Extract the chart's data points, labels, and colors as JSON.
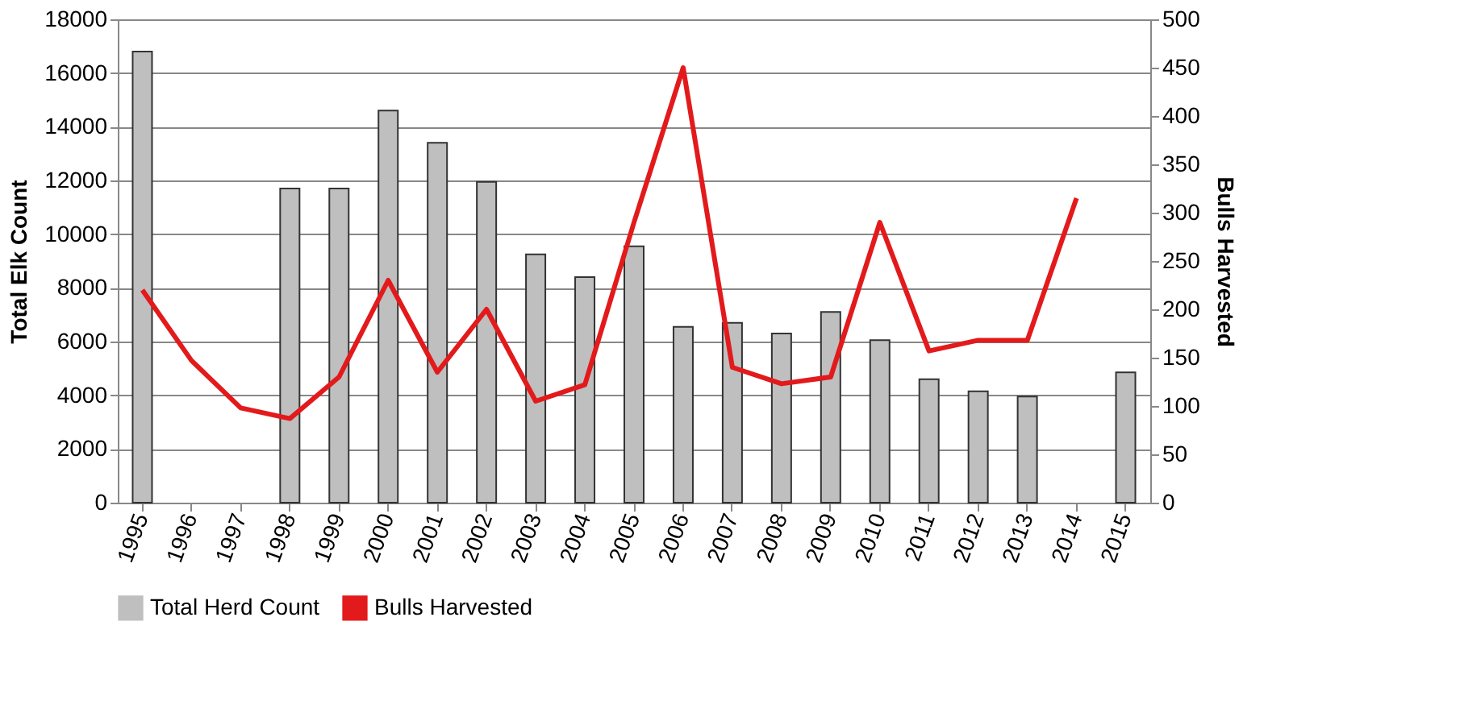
{
  "chart_data": {
    "type": "bar",
    "categories": [
      "1995",
      "1996",
      "1997",
      "1998",
      "1999",
      "2000",
      "2001",
      "2002",
      "2003",
      "2004",
      "2005",
      "2006",
      "2007",
      "2008",
      "2009",
      "2010",
      "2011",
      "2012",
      "2013",
      "2014",
      "2015"
    ],
    "series": [
      {
        "name": "Total Herd Count",
        "color": "#bfbfbf",
        "values": [
          16800,
          null,
          null,
          11700,
          11700,
          14600,
          13400,
          11950,
          9250,
          8400,
          9550,
          6550,
          6700,
          6300,
          7100,
          6050,
          4600,
          4150,
          3950,
          null,
          4850
        ]
      },
      {
        "name": "Bulls Harvested",
        "type": "line",
        "axis": "y2",
        "color": "#e31a1c",
        "values": [
          220,
          147,
          98,
          87,
          130,
          230,
          135,
          200,
          105,
          122,
          290,
          450,
          140,
          123,
          130,
          290,
          157,
          168,
          168,
          315,
          null
        ]
      }
    ],
    "ylabel": "Total Elk Count",
    "y2label": "Bulls Harvested",
    "ylim": [
      0,
      18000
    ],
    "yticks": [
      0,
      2000,
      4000,
      6000,
      8000,
      10000,
      12000,
      14000,
      16000,
      18000
    ],
    "y2lim": [
      0,
      500
    ],
    "y2ticks": [
      0,
      50,
      100,
      150,
      200,
      250,
      300,
      350,
      400,
      450,
      500
    ],
    "grid": "y",
    "legend": "bottom",
    "marker": "none",
    "line_style": "solid"
  }
}
